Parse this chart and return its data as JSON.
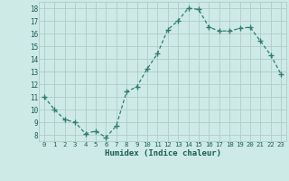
{
  "x": [
    0,
    1,
    2,
    3,
    4,
    5,
    6,
    7,
    8,
    9,
    10,
    11,
    12,
    13,
    14,
    15,
    16,
    17,
    18,
    19,
    20,
    21,
    22,
    23
  ],
  "y": [
    11,
    10,
    9.2,
    9,
    8.1,
    8.3,
    7.8,
    8.7,
    11.4,
    11.8,
    13.2,
    14.4,
    16.3,
    17.0,
    18.0,
    17.9,
    16.5,
    16.2,
    16.2,
    16.4,
    16.5,
    15.4,
    14.3,
    12.8
  ],
  "line_color": "#2e7d6e",
  "marker": "+",
  "marker_size": 4,
  "bg_color": "#ceeae6",
  "grid_color": "#b0ccc8",
  "xlabel": "Humidex (Indice chaleur)",
  "ylabel_ticks": [
    8,
    9,
    10,
    11,
    12,
    13,
    14,
    15,
    16,
    17,
    18
  ],
  "ylim": [
    7.5,
    18.5
  ],
  "xlim": [
    -0.5,
    23.5
  ],
  "tick_label_color": "#1a5c55"
}
